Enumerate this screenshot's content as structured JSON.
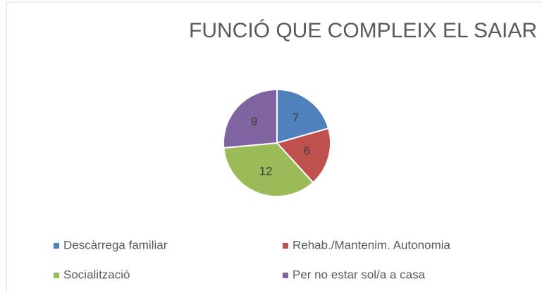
{
  "chart_data": {
    "type": "pie",
    "title": "FUNCIÓ QUE COMPLEIX EL SAIAR",
    "categories": [
      "Descàrrega familiar",
      "Rehab./Mantenim. Autonomia",
      "Socialització",
      "Per no estar sol/a a casa"
    ],
    "values": [
      7,
      6,
      12,
      9
    ],
    "colors": [
      "#4f81bd",
      "#c0504d",
      "#9bbb59",
      "#8064a2"
    ],
    "legend": "bottom"
  }
}
